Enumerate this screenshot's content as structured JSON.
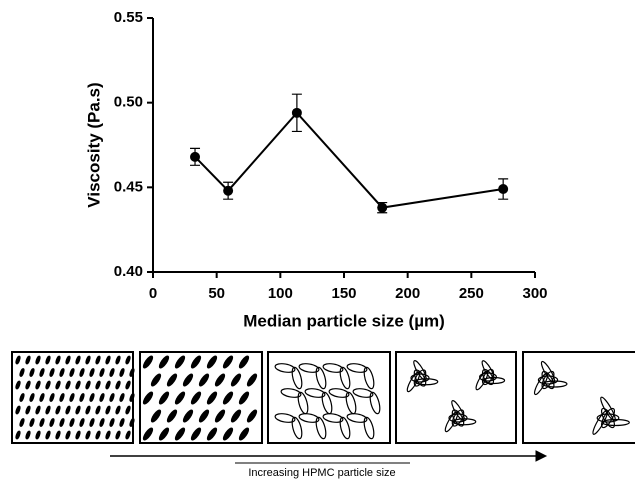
{
  "chart_data": {
    "type": "line",
    "x_label": "Median particle size (µm)",
    "y_label": "Viscosity (Pa.s)",
    "x": [
      33,
      59,
      113,
      180,
      275
    ],
    "series": [
      {
        "color": "#000000",
        "values": [
          0.468,
          0.448,
          0.494,
          0.438,
          0.449
        ],
        "errors": [
          0.005,
          0.005,
          0.011,
          0.003,
          0.006
        ]
      }
    ],
    "xlim": [
      0,
      300
    ],
    "xticks": [
      0,
      50,
      100,
      150,
      200,
      250,
      300
    ],
    "ylim": [
      0.4,
      0.55
    ],
    "yticks": [
      {
        "value": 0.4,
        "label": "0.40"
      },
      0.45,
      {
        "value": 0.5,
        "label": "0.50"
      },
      0.55
    ]
  },
  "diagram": {
    "caption": "Increasing HPMC particle size"
  }
}
